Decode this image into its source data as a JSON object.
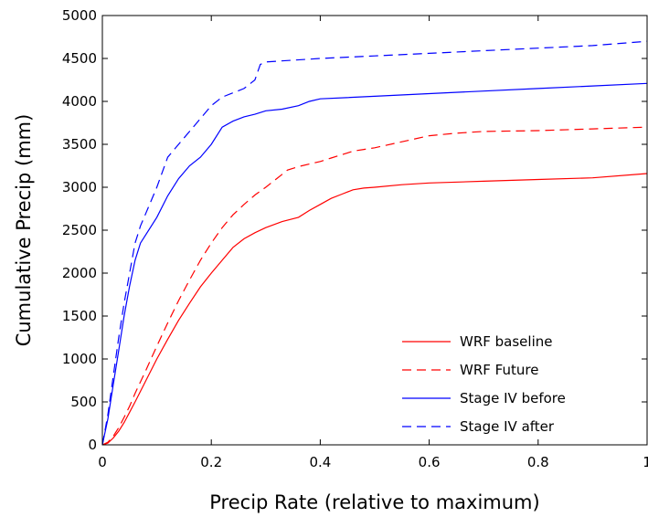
{
  "chart_data": {
    "type": "line",
    "title": "",
    "xlabel": "Precip Rate (relative to maximum)",
    "ylabel": "Cumulative Precip (mm)",
    "xlim": [
      0,
      1
    ],
    "ylim": [
      0,
      5000
    ],
    "xticks": [
      0,
      0.2,
      0.4,
      0.6,
      0.8,
      1
    ],
    "xtick_labels": [
      "0",
      "0.2",
      "0.4",
      "0.6",
      "0.8",
      "1"
    ],
    "yticks": [
      0,
      500,
      1000,
      1500,
      2000,
      2500,
      3000,
      3500,
      4000,
      4500,
      5000
    ],
    "ytick_labels": [
      "0",
      "500",
      "1000",
      "1500",
      "2000",
      "2500",
      "3000",
      "3500",
      "4000",
      "4500",
      "5000"
    ],
    "grid": false,
    "legend_position": "bottom-right",
    "series": [
      {
        "name": "WRF baseline",
        "color": "#ff0000",
        "dash": "solid",
        "x": [
          0,
          0.01,
          0.02,
          0.03,
          0.04,
          0.05,
          0.06,
          0.08,
          0.1,
          0.12,
          0.14,
          0.16,
          0.18,
          0.2,
          0.22,
          0.24,
          0.26,
          0.28,
          0.3,
          0.33,
          0.36,
          0.38,
          0.4,
          0.42,
          0.44,
          0.46,
          0.48,
          0.5,
          0.55,
          0.6,
          0.7,
          0.8,
          0.9,
          1.0
        ],
        "y": [
          0,
          20,
          80,
          160,
          260,
          380,
          500,
          750,
          1000,
          1230,
          1450,
          1650,
          1840,
          2000,
          2150,
          2300,
          2400,
          2470,
          2530,
          2600,
          2650,
          2730,
          2800,
          2870,
          2920,
          2970,
          2990,
          3000,
          3030,
          3050,
          3070,
          3090,
          3110,
          3160
        ]
      },
      {
        "name": "WRF Future",
        "color": "#ff0000",
        "dash": "dashed",
        "x": [
          0,
          0.01,
          0.02,
          0.03,
          0.04,
          0.05,
          0.06,
          0.08,
          0.1,
          0.12,
          0.14,
          0.16,
          0.18,
          0.2,
          0.22,
          0.24,
          0.26,
          0.28,
          0.3,
          0.32,
          0.34,
          0.36,
          0.38,
          0.4,
          0.42,
          0.44,
          0.46,
          0.48,
          0.5,
          0.55,
          0.6,
          0.65,
          0.7,
          0.8,
          0.9,
          1.0
        ],
        "y": [
          0,
          30,
          100,
          200,
          320,
          450,
          600,
          870,
          1150,
          1420,
          1680,
          1920,
          2150,
          2350,
          2530,
          2680,
          2800,
          2910,
          3000,
          3100,
          3200,
          3240,
          3270,
          3300,
          3340,
          3380,
          3420,
          3440,
          3460,
          3530,
          3600,
          3630,
          3650,
          3660,
          3680,
          3700
        ]
      },
      {
        "name": "Stage IV before",
        "color": "#0000ff",
        "dash": "solid",
        "x": [
          0,
          0.01,
          0.02,
          0.03,
          0.04,
          0.05,
          0.06,
          0.07,
          0.08,
          0.1,
          0.12,
          0.14,
          0.16,
          0.18,
          0.2,
          0.22,
          0.24,
          0.26,
          0.28,
          0.3,
          0.33,
          0.36,
          0.38,
          0.4,
          0.5,
          0.6,
          0.7,
          0.8,
          0.9,
          1.0
        ],
        "y": [
          0,
          300,
          700,
          1100,
          1500,
          1850,
          2150,
          2350,
          2450,
          2650,
          2900,
          3100,
          3250,
          3350,
          3500,
          3700,
          3770,
          3820,
          3850,
          3890,
          3910,
          3950,
          4000,
          4030,
          4060,
          4090,
          4120,
          4150,
          4180,
          4210
        ]
      },
      {
        "name": "Stage IV after",
        "color": "#0000ff",
        "dash": "dashed",
        "x": [
          0,
          0.01,
          0.02,
          0.03,
          0.04,
          0.05,
          0.06,
          0.07,
          0.08,
          0.1,
          0.12,
          0.14,
          0.16,
          0.18,
          0.2,
          0.22,
          0.24,
          0.26,
          0.28,
          0.29,
          0.3,
          0.35,
          0.4,
          0.5,
          0.6,
          0.7,
          0.8,
          0.9,
          1.0
        ],
        "y": [
          0,
          350,
          800,
          1250,
          1650,
          2000,
          2350,
          2550,
          2700,
          3000,
          3350,
          3500,
          3650,
          3800,
          3950,
          4050,
          4100,
          4150,
          4250,
          4430,
          4460,
          4480,
          4500,
          4530,
          4560,
          4590,
          4620,
          4650,
          4700
        ]
      }
    ]
  }
}
